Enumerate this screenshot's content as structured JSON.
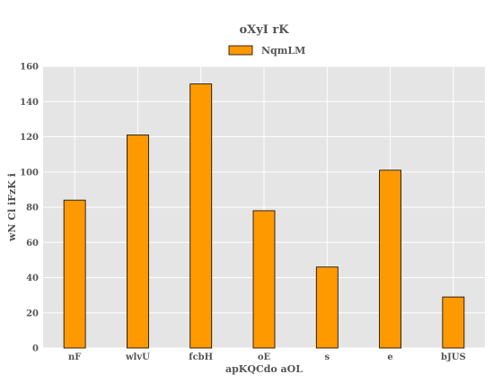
{
  "chart_data": {
    "type": "bar",
    "title": "oXyI rK",
    "xlabel": "apKQCdo aOL",
    "ylabel": "wN Cl iFzK i",
    "categories": [
      "nF",
      "wlvU",
      "fcbH",
      "oE",
      "s",
      "e",
      "bJUS"
    ],
    "series": [
      {
        "name": "NqmLM",
        "values": [
          84,
          121,
          150,
          78,
          46,
          101,
          29
        ],
        "color": "#ff9900"
      }
    ],
    "ylim": [
      0,
      160
    ],
    "yticks": [
      0,
      20,
      40,
      60,
      80,
      100,
      120,
      140,
      160
    ],
    "grid": true,
    "legend_position": "top-center",
    "plot_background": "#e5e5e5"
  }
}
